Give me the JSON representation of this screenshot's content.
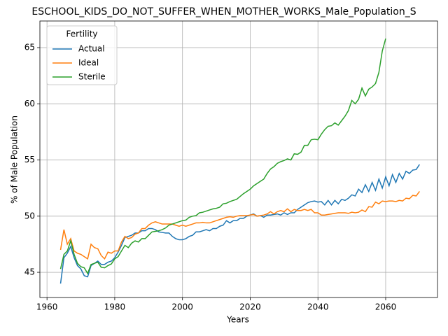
{
  "chart_data": {
    "type": "line",
    "title": "ESCHOOL_KIDS_DO_NOT_SUFFER_WHEN_MOTHER_WORKS_Male_Population_S",
    "x_label": "Years",
    "y_label": "% of Male Population",
    "legend_title": "Fertility",
    "legend_position": "upper-left",
    "grid": true,
    "xlim": [
      1957.9,
      2075.3
    ],
    "ylim": [
      42.76,
      67.37
    ],
    "xticks": [
      1960,
      1980,
      2000,
      2020,
      2040,
      2060
    ],
    "yticks": [
      45,
      50,
      55,
      60,
      65
    ],
    "x": [
      1964,
      1965,
      1966,
      1967,
      1968,
      1969,
      1970,
      1971,
      1972,
      1973,
      1974,
      1975,
      1976,
      1977,
      1978,
      1979,
      1980,
      1981,
      1982,
      1983,
      1984,
      1985,
      1986,
      1987,
      1988,
      1989,
      1990,
      1991,
      1992,
      1993,
      1994,
      1995,
      1996,
      1997,
      1998,
      1999,
      2000,
      2001,
      2002,
      2003,
      2004,
      2005,
      2006,
      2007,
      2008,
      2009,
      2010,
      2011,
      2012,
      2013,
      2014,
      2015,
      2016,
      2017,
      2018,
      2019,
      2020,
      2021,
      2022,
      2023,
      2024,
      2025,
      2026,
      2027,
      2028,
      2029,
      2030,
      2031,
      2032,
      2033,
      2034,
      2035,
      2036,
      2037,
      2038,
      2039,
      2040,
      2041,
      2042,
      2043,
      2044,
      2045,
      2046,
      2047,
      2048,
      2049,
      2050,
      2051,
      2052,
      2053,
      2054,
      2055,
      2056,
      2057,
      2058,
      2059,
      2060,
      2061,
      2062,
      2063,
      2064,
      2065,
      2066,
      2067,
      2068,
      2069,
      2070
    ],
    "series": [
      {
        "name": "Actual",
        "color": "#1f77b4",
        "values": [
          44.0,
          46.3,
          46.7,
          47.3,
          46.3,
          45.6,
          45.3,
          44.7,
          44.6,
          45.6,
          45.8,
          46.0,
          45.7,
          45.7,
          45.9,
          46.0,
          46.3,
          46.8,
          47.4,
          48.1,
          48.2,
          48.3,
          48.5,
          48.5,
          48.7,
          48.7,
          48.9,
          48.9,
          48.8,
          48.6,
          48.55,
          48.5,
          48.5,
          48.2,
          48.0,
          47.9,
          47.9,
          48.0,
          48.2,
          48.3,
          48.6,
          48.6,
          48.7,
          48.8,
          48.7,
          48.9,
          48.9,
          49.1,
          49.2,
          49.6,
          49.4,
          49.6,
          49.6,
          49.8,
          49.8,
          50.0,
          50.1,
          50.2,
          50.0,
          50.05,
          49.9,
          50.1,
          50.1,
          50.15,
          50.2,
          50.1,
          50.3,
          50.15,
          50.3,
          50.3,
          50.6,
          50.8,
          51.0,
          51.2,
          51.3,
          51.35,
          51.25,
          51.3,
          51.0,
          51.4,
          51.0,
          51.4,
          51.1,
          51.5,
          51.4,
          51.6,
          51.9,
          51.8,
          52.4,
          52.1,
          52.8,
          52.2,
          53.0,
          52.3,
          53.3,
          52.5,
          53.5,
          52.7,
          53.7,
          53.0,
          53.8,
          53.3,
          54.0,
          53.8,
          54.1,
          54.15,
          54.6
        ]
      },
      {
        "name": "Ideal",
        "color": "#ff7f0e",
        "values": [
          47.0,
          48.8,
          47.5,
          48.0,
          46.9,
          46.7,
          46.6,
          46.4,
          46.2,
          47.5,
          47.2,
          47.1,
          46.5,
          46.2,
          46.8,
          46.7,
          46.9,
          46.9,
          47.7,
          48.2,
          48.0,
          48.1,
          48.4,
          48.5,
          48.9,
          48.9,
          49.2,
          49.4,
          49.5,
          49.4,
          49.3,
          49.3,
          49.3,
          49.3,
          49.2,
          49.1,
          49.2,
          49.1,
          49.2,
          49.3,
          49.4,
          49.4,
          49.45,
          49.4,
          49.4,
          49.5,
          49.6,
          49.7,
          49.8,
          49.9,
          49.95,
          49.9,
          50.0,
          50.05,
          50.05,
          50.05,
          50.1,
          50.15,
          50.0,
          50.05,
          50.1,
          50.2,
          50.4,
          50.2,
          50.4,
          50.5,
          50.4,
          50.65,
          50.4,
          50.6,
          50.5,
          50.5,
          50.6,
          50.5,
          50.6,
          50.3,
          50.3,
          50.1,
          50.1,
          50.15,
          50.2,
          50.25,
          50.3,
          50.3,
          50.3,
          50.25,
          50.35,
          50.3,
          50.35,
          50.55,
          50.4,
          50.85,
          50.8,
          51.25,
          51.1,
          51.35,
          51.3,
          51.35,
          51.35,
          51.3,
          51.4,
          51.35,
          51.6,
          51.55,
          51.85,
          51.8,
          52.2
        ]
      },
      {
        "name": "Sterile",
        "color": "#2ca02c",
        "values": [
          45.3,
          46.6,
          46.9,
          47.8,
          46.6,
          45.8,
          45.5,
          45.4,
          44.9,
          45.7,
          45.8,
          45.9,
          45.45,
          45.4,
          45.6,
          45.75,
          46.2,
          46.4,
          46.9,
          47.4,
          47.2,
          47.6,
          47.8,
          47.7,
          48.0,
          48.0,
          48.3,
          48.6,
          48.65,
          48.7,
          48.8,
          48.95,
          49.2,
          49.3,
          49.4,
          49.5,
          49.6,
          49.65,
          49.9,
          50.0,
          50.05,
          50.3,
          50.35,
          50.45,
          50.55,
          50.65,
          50.7,
          50.8,
          51.1,
          51.15,
          51.3,
          51.4,
          51.5,
          51.75,
          52.0,
          52.2,
          52.4,
          52.7,
          52.9,
          53.1,
          53.3,
          53.8,
          54.2,
          54.4,
          54.7,
          54.85,
          54.95,
          55.1,
          55.0,
          55.55,
          55.5,
          55.7,
          56.3,
          56.3,
          56.8,
          56.85,
          56.8,
          57.3,
          57.7,
          58.0,
          58.05,
          58.3,
          58.1,
          58.5,
          58.9,
          59.4,
          60.3,
          60.0,
          60.4,
          61.4,
          60.7,
          61.3,
          61.5,
          61.8,
          62.8,
          64.7,
          65.8,
          null,
          null,
          null,
          null,
          null,
          null,
          null,
          null,
          null,
          null
        ]
      }
    ]
  }
}
